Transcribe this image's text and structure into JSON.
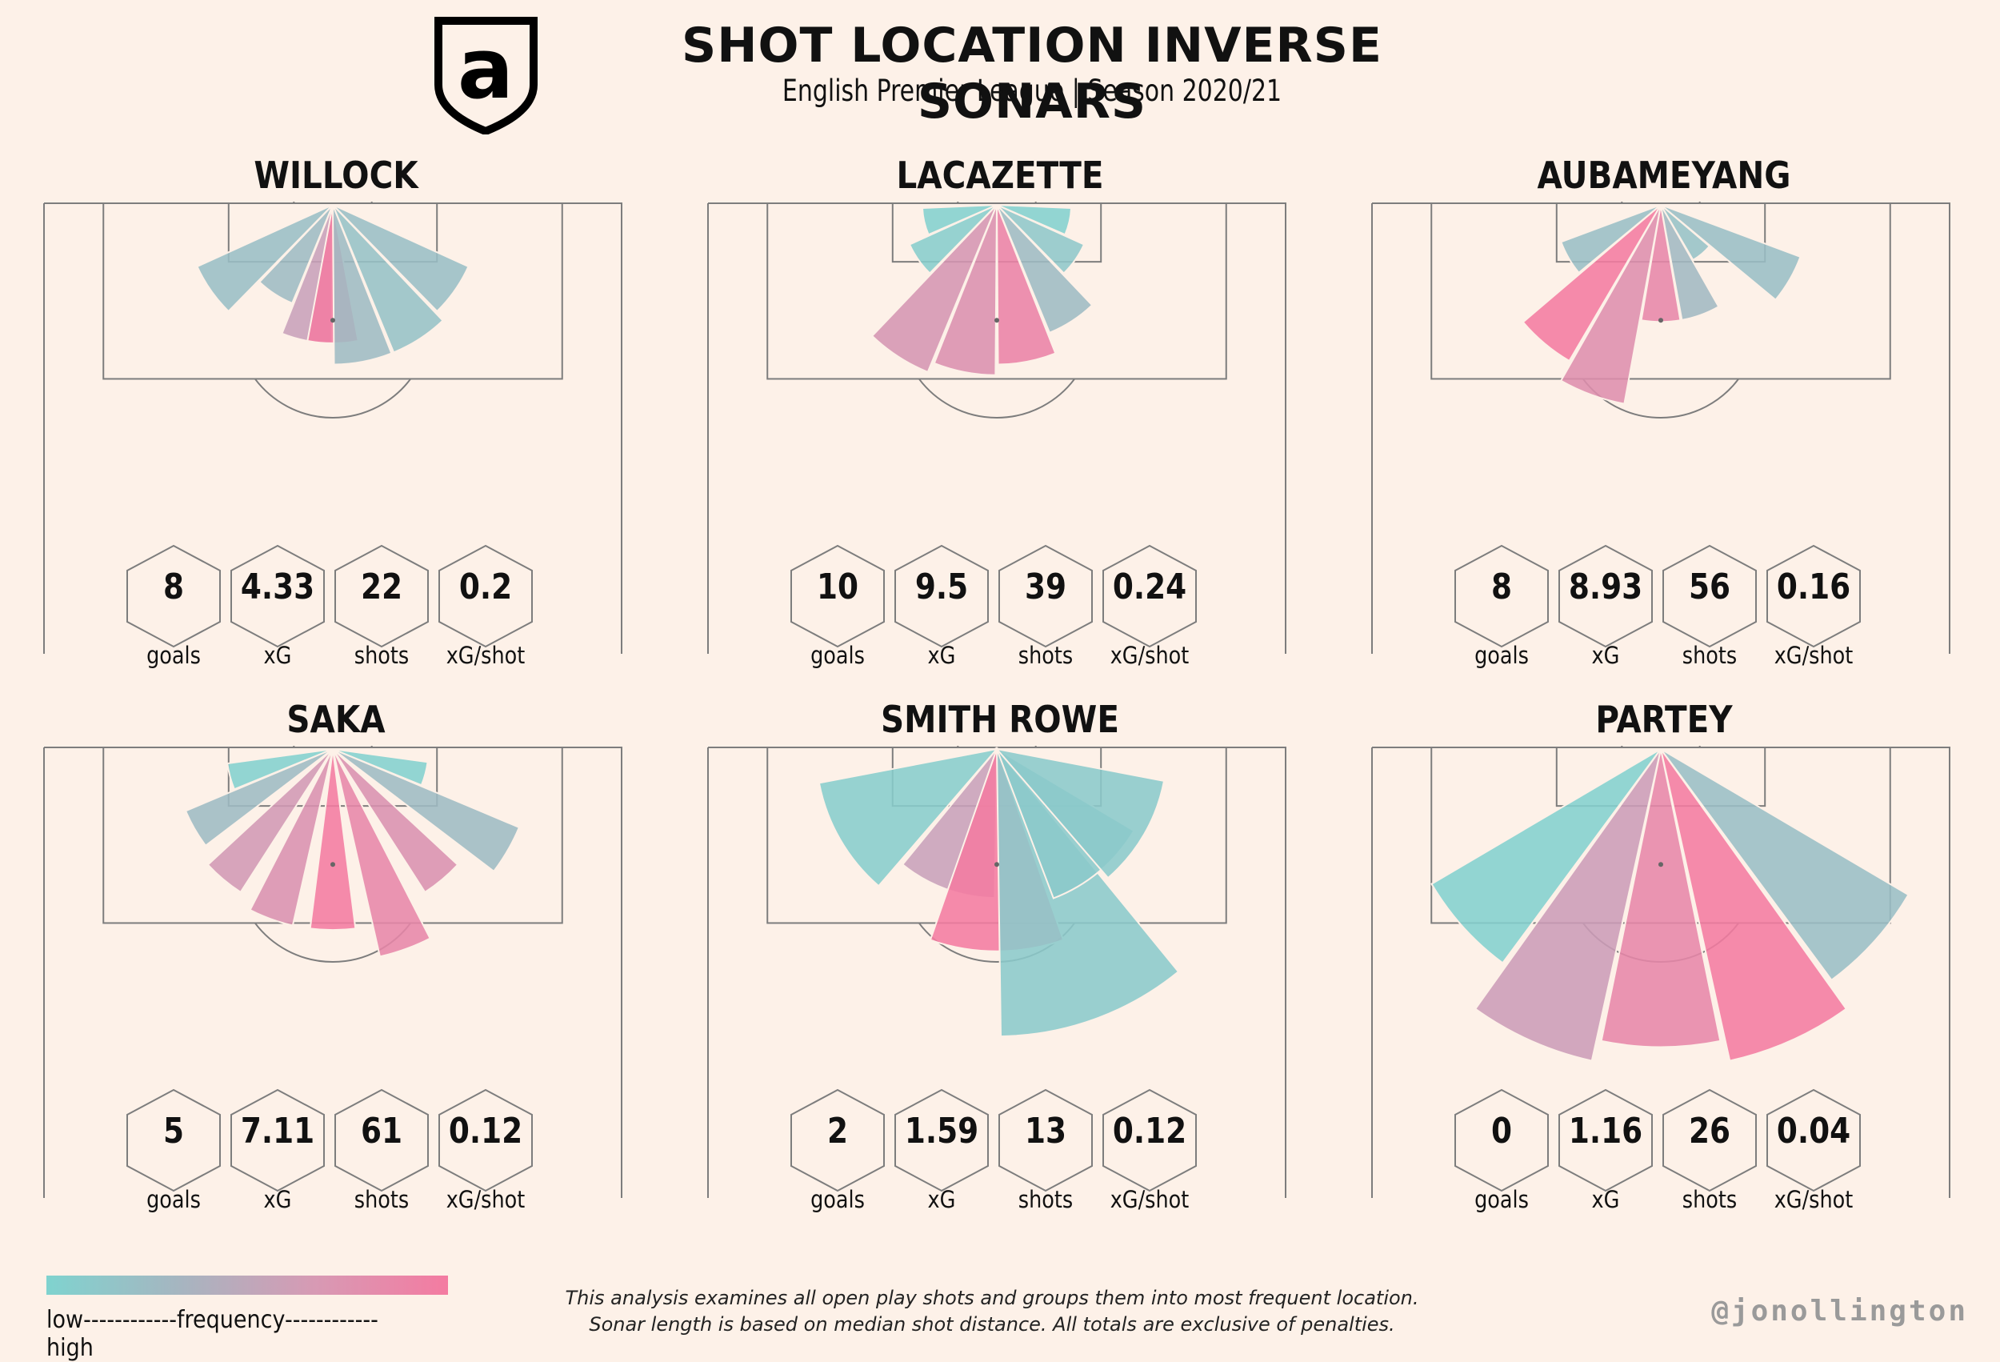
{
  "header": {
    "title": "SHOT LOCATION INVERSE SONARS",
    "subtitle": "English Premier League | Season 2020/21"
  },
  "colors": {
    "background": "#fdf1e8",
    "low": "#7fd3cf",
    "mid": "#c8a5bb",
    "high": "#f47ba1",
    "pitch_line": "#7d7d7d"
  },
  "icons": {
    "logo": "arsenal-a-crest-icon"
  },
  "stat_labels": [
    "goals",
    "xG",
    "shots",
    "xG/shot"
  ],
  "chart_data": [
    {
      "type": "polar-sonar",
      "title": "WILLOCK",
      "stats": {
        "goals": "8",
        "xG": "4.33",
        "shots": "22",
        "xG/shot": "0.2"
      },
      "sonar": [
        {
          "angle": -55,
          "length": 14,
          "frequency": 0.35
        },
        {
          "angle": -33,
          "length": 10,
          "frequency": 0.4
        },
        {
          "angle": -11,
          "length": 13,
          "frequency": 0.5
        },
        {
          "angle": 0,
          "length": 13,
          "frequency": 0.98
        },
        {
          "angle": 11,
          "length": 15,
          "frequency": 0.4
        },
        {
          "angle": 33,
          "length": 15,
          "frequency": 0.3
        },
        {
          "angle": 55,
          "length": 14,
          "frequency": 0.35
        }
      ]
    },
    {
      "type": "polar-sonar",
      "title": "LACAZETTE",
      "stats": {
        "goals": "10",
        "xG": "9.5",
        "shots": "39",
        "xG/shot": "0.24"
      },
      "sonar": [
        {
          "angle": -77,
          "length": 7,
          "frequency": 0.05
        },
        {
          "angle": -55,
          "length": 9,
          "frequency": 0.1
        },
        {
          "angle": -33,
          "length": 17,
          "frequency": 0.65
        },
        {
          "angle": -11,
          "length": 16,
          "frequency": 0.72
        },
        {
          "angle": 11,
          "length": 15,
          "frequency": 0.9
        },
        {
          "angle": 33,
          "length": 13,
          "frequency": 0.4
        },
        {
          "angle": 55,
          "length": 9,
          "frequency": 0.2
        },
        {
          "angle": 77,
          "length": 7,
          "frequency": 0.05
        }
      ]
    },
    {
      "type": "polar-sonar",
      "title": "AUBAMEYANG",
      "stats": {
        "goals": "8",
        "xG": "8.93",
        "shots": "56",
        "xG/shot": "0.16"
      },
      "sonar": [
        {
          "angle": -60,
          "length": 10,
          "frequency": 0.35
        },
        {
          "angle": -40,
          "length": 17,
          "frequency": 1.0
        },
        {
          "angle": -20,
          "length": 19,
          "frequency": 0.75
        },
        {
          "angle": 0,
          "length": 11,
          "frequency": 0.85
        },
        {
          "angle": 20,
          "length": 11,
          "frequency": 0.45
        },
        {
          "angle": 40,
          "length": 6,
          "frequency": 0.3
        },
        {
          "angle": 60,
          "length": 14,
          "frequency": 0.35
        }
      ]
    },
    {
      "type": "polar-sonar",
      "title": "SAKA",
      "stats": {
        "goals": "5",
        "xG": "7.11",
        "shots": "61",
        "xG/shot": "0.12"
      },
      "sonar": [
        {
          "angle": -75,
          "length": 10,
          "frequency": 0.05
        },
        {
          "angle": -60,
          "length": 15,
          "frequency": 0.4
        },
        {
          "angle": -40,
          "length": 16,
          "frequency": 0.6
        },
        {
          "angle": -20,
          "length": 17,
          "frequency": 0.7
        },
        {
          "angle": 0,
          "length": 17,
          "frequency": 1.0
        },
        {
          "angle": 20,
          "length": 20,
          "frequency": 0.85
        },
        {
          "angle": 40,
          "length": 16,
          "frequency": 0.7
        },
        {
          "angle": 60,
          "length": 19,
          "frequency": 0.4
        },
        {
          "angle": 75,
          "length": 9,
          "frequency": 0.05
        }
      ]
    },
    {
      "type": "polar-sonar",
      "title": "SMITH ROWE",
      "stats": {
        "goals": "2",
        "xG": "1.59",
        "shots": "13",
        "xG/shot": "0.12"
      },
      "sonar": [
        {
          "angle": -60,
          "length": 17,
          "frequency": 0.1
        },
        {
          "angle": -20,
          "length": 14,
          "frequency": 0.5
        },
        {
          "angle": 0,
          "length": 19,
          "frequency": 1.0
        },
        {
          "angle": 20,
          "length": 27,
          "frequency": 0.15
        },
        {
          "angle": 40,
          "length": 15,
          "frequency": 0.15
        },
        {
          "angle": 60,
          "length": 16,
          "frequency": 0.15
        }
      ]
    },
    {
      "type": "polar-sonar",
      "title": "PARTEY",
      "stats": {
        "goals": "0",
        "xG": "1.16",
        "shots": "26",
        "xG/shot": "0.04"
      },
      "sonar": [
        {
          "angle": -48,
          "length": 25,
          "frequency": 0.05
        },
        {
          "angle": -24,
          "length": 30,
          "frequency": 0.55
        },
        {
          "angle": 0,
          "length": 28,
          "frequency": 0.85
        },
        {
          "angle": 24,
          "length": 30,
          "frequency": 1.0
        },
        {
          "angle": 48,
          "length": 27,
          "frequency": 0.35
        }
      ]
    }
  ],
  "legend": {
    "text": "low------------frequency------------high"
  },
  "footnote": {
    "line1": "This analysis examines all open play shots and groups them into most frequent location.",
    "line2": "Sonar length is based on median shot distance. All totals are exclusive of penalties."
  },
  "credit": "@jonollington"
}
